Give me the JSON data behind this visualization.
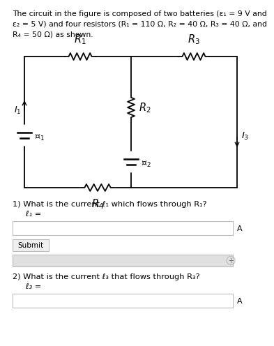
{
  "title_line1": "The circuit in the figure is composed of two batteries (ε₁ = 9 V and",
  "title_line2": "ε₂ = 5 V) and four resistors (R₁ = 110 Ω, R₂ = 40 Ω, R₃ = 40 Ω, and",
  "title_line3": "R₄ = 50 Ω) as shown.",
  "q1_text": "1) What is the current ℓ₁ which flows through R₁?",
  "q1_sub": "   ℓ₁ =",
  "q2_text": "2) What is the current ℓ₃ that flows through R₃?",
  "q2_sub": "   ℓ₃ =",
  "submit_text": "Submit",
  "unit_A": "A",
  "bg_color": "#ffffff",
  "circuit_color": "#000000",
  "text_color": "#000000",
  "box_border": "#bbbbbb",
  "gray_bar": "#e0e0e0"
}
